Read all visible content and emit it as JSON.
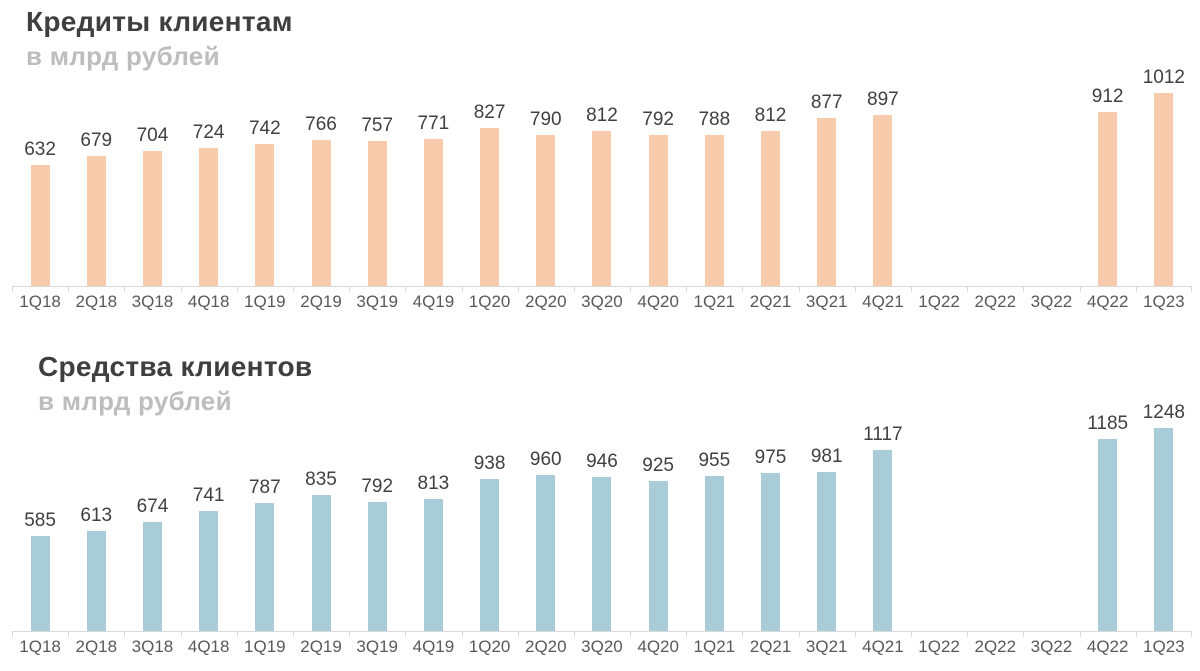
{
  "colors": {
    "loans_bar": "#F8CBAD",
    "deposits_bar": "#A9CCD9",
    "title_text": "#3F3F3F",
    "subtitle_text": "#BDBDBD",
    "value_label_text": "#404040",
    "axis_label_text": "#595959",
    "axis_line": "#D9D9D9",
    "background": "#FFFFFF"
  },
  "chart_data": [
    {
      "type": "bar",
      "title": "Кредиты клиентам",
      "subtitle": "в млрд рублей",
      "ylabel": "",
      "xlabel": "",
      "grid": false,
      "legend": "none",
      "value_labels": "above bars",
      "ylim": [
        0,
        1130
      ],
      "bar_color": "#F8CBAD",
      "categories": [
        "1Q18",
        "2Q18",
        "3Q18",
        "4Q18",
        "1Q19",
        "2Q19",
        "3Q19",
        "4Q19",
        "1Q20",
        "2Q20",
        "3Q20",
        "4Q20",
        "1Q21",
        "2Q21",
        "3Q21",
        "4Q21",
        "1Q22",
        "2Q22",
        "3Q22",
        "4Q22",
        "1Q23"
      ],
      "values": [
        632,
        679,
        704,
        724,
        742,
        766,
        757,
        771,
        827,
        790,
        812,
        792,
        788,
        812,
        877,
        897,
        null,
        null,
        null,
        912,
        1012
      ]
    },
    {
      "type": "bar",
      "title": "Средства клиентов",
      "subtitle": "в млрд рублей",
      "ylabel": "",
      "xlabel": "",
      "grid": false,
      "legend": "none",
      "value_labels": "above bars",
      "ylim": [
        0,
        1330
      ],
      "bar_color": "#A9CCD9",
      "categories": [
        "1Q18",
        "2Q18",
        "3Q18",
        "4Q18",
        "1Q19",
        "2Q19",
        "3Q19",
        "4Q19",
        "1Q20",
        "2Q20",
        "3Q20",
        "4Q20",
        "1Q21",
        "2Q21",
        "3Q21",
        "4Q21",
        "1Q22",
        "2Q22",
        "3Q22",
        "4Q22",
        "1Q23"
      ],
      "values": [
        585,
        613,
        674,
        741,
        787,
        835,
        792,
        813,
        938,
        960,
        946,
        925,
        955,
        975,
        981,
        1117,
        null,
        null,
        null,
        1185,
        1248
      ]
    }
  ]
}
